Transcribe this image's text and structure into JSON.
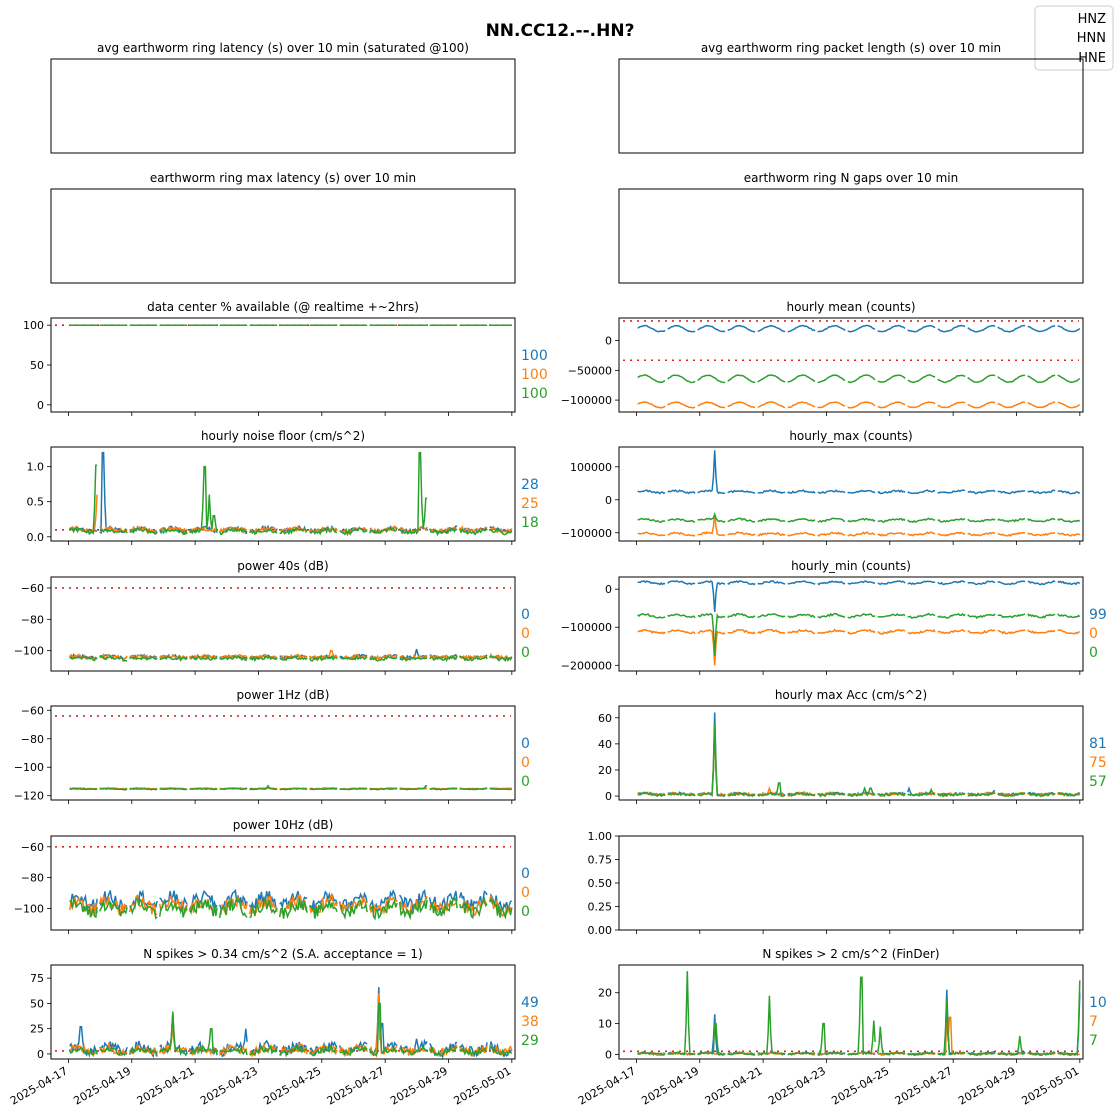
{
  "figure": {
    "title": "NN.CC12.--.HN?",
    "legend": [
      "HNZ",
      "HNN",
      "HNE"
    ],
    "legend_position": "top-right",
    "date_ticks": [
      "2025-04-17",
      "2025-04-19",
      "2025-04-21",
      "2025-04-23",
      "2025-04-25",
      "2025-04-27",
      "2025-04-29",
      "2025-05-01"
    ],
    "colors": {
      "HNZ": "#1f77b4",
      "HNN": "#ff7f0e",
      "HNE": "#2ca02c",
      "threshold": "#d62728"
    }
  },
  "chart_data": [
    {
      "id": "p0",
      "type": "line",
      "title": "avg earthworm ring latency (s)   over 10 min (saturated @100)",
      "empty": true,
      "yticks": [],
      "ylim": null,
      "threshold": [],
      "right_labels": []
    },
    {
      "id": "p1",
      "type": "line",
      "title": "avg earthworm ring packet length (s)   over 10 min",
      "empty": true,
      "yticks": [],
      "ylim": null,
      "threshold": [],
      "right_labels": []
    },
    {
      "id": "p2",
      "type": "line",
      "title": "earthworm ring max latency (s)   over 10 min",
      "empty": true,
      "yticks": [],
      "ylim": null,
      "threshold": [],
      "right_labels": []
    },
    {
      "id": "p3",
      "type": "line",
      "title": "earthworm ring N gaps   over 10 min",
      "empty": true,
      "yticks": [],
      "ylim": null,
      "threshold": [],
      "right_labels": []
    },
    {
      "id": "p4",
      "type": "line",
      "title": "data center % available (@ realtime +~2hrs)",
      "ylim": [
        -9,
        109
      ],
      "yticks": [
        {
          "v": 100,
          "t": "100"
        },
        {
          "v": 50,
          "t": "50"
        },
        {
          "v": 0,
          "t": "0"
        }
      ],
      "threshold": [
        100
      ],
      "right_labels": [
        "100",
        "100",
        "100"
      ],
      "series": [
        {
          "name": "HNZ",
          "base": 100,
          "amp": 0,
          "noise": 0,
          "spikes": []
        },
        {
          "name": "HNN",
          "base": 100,
          "amp": 0,
          "noise": 0,
          "spikes": []
        },
        {
          "name": "HNE",
          "base": 100,
          "amp": 0,
          "noise": 0,
          "spikes": []
        }
      ]
    },
    {
      "id": "p5",
      "type": "line",
      "title": "hourly mean (counts)",
      "ylim": [
        -120000,
        38000
      ],
      "yticks": [
        {
          "v": 0,
          "t": "0"
        },
        {
          "v": -50000,
          "t": "−50000"
        },
        {
          "v": -100000,
          "t": "−100000"
        }
      ],
      "threshold": [
        33000,
        -33000
      ],
      "right_labels": [],
      "series": [
        {
          "name": "HNZ",
          "base": 20000,
          "amp": 5000,
          "noise": 600,
          "spikes": []
        },
        {
          "name": "HNN",
          "base": -108000,
          "amp": 4500,
          "noise": 600,
          "spikes": []
        },
        {
          "name": "HNE",
          "base": -64000,
          "amp": 6000,
          "noise": 600,
          "spikes": []
        }
      ]
    },
    {
      "id": "p6",
      "type": "line",
      "title": "hourly noise floor (cm/s^2)",
      "ylim": [
        -0.06,
        1.28
      ],
      "yticks": [
        {
          "v": 1.0,
          "t": "1.0"
        },
        {
          "v": 0.5,
          "t": "0.5"
        },
        {
          "v": 0.0,
          "t": "0.0"
        }
      ],
      "threshold": [
        0.1
      ],
      "right_labels": [
        "28",
        "25",
        "18"
      ],
      "series": [
        {
          "name": "HNZ",
          "base": 0.1,
          "amp": 0.02,
          "noise": 0.03,
          "spikes": [
            [
              1.1,
              1.2
            ]
          ]
        },
        {
          "name": "HNN",
          "base": 0.1,
          "amp": 0.02,
          "noise": 0.03,
          "spikes": [
            [
              0.95,
              0.22
            ],
            [
              0.9,
              0.6
            ]
          ]
        },
        {
          "name": "HNE",
          "base": 0.08,
          "amp": 0.02,
          "noise": 0.03,
          "spikes": [
            [
              0.88,
              1.02
            ],
            [
              4.3,
              1.0
            ],
            [
              4.45,
              0.6
            ],
            [
              4.6,
              0.3
            ],
            [
              11.3,
              0.55
            ],
            [
              11.1,
              1.2
            ]
          ]
        }
      ]
    },
    {
      "id": "p7",
      "type": "line",
      "title": "hourly_max (counts)",
      "ylim": [
        -125000,
        160000
      ],
      "yticks": [
        {
          "v": 100000,
          "t": "100000"
        },
        {
          "v": 0,
          "t": "0"
        },
        {
          "v": -100000,
          "t": "−100000"
        }
      ],
      "threshold": [],
      "right_labels": [],
      "series": [
        {
          "name": "HNZ",
          "base": 24000,
          "amp": 3000,
          "noise": 2500,
          "spikes": [
            [
              2.48,
              150000
            ]
          ]
        },
        {
          "name": "HNN",
          "base": -104000,
          "amp": 3500,
          "noise": 2500,
          "spikes": [
            [
              2.48,
              -42000
            ]
          ]
        },
        {
          "name": "HNE",
          "base": -62000,
          "amp": 3500,
          "noise": 2500,
          "spikes": [
            [
              2.48,
              -44000
            ]
          ]
        }
      ]
    },
    {
      "id": "p8",
      "type": "line",
      "title": "power 40s (dB)",
      "ylim": [
        -113,
        -53
      ],
      "yticks": [
        {
          "v": -60,
          "t": "−60"
        },
        {
          "v": -80,
          "t": "−80"
        },
        {
          "v": -100,
          "t": "−100"
        }
      ],
      "threshold": [
        -60
      ],
      "right_labels": [
        "0",
        "0",
        "0"
      ],
      "series": [
        {
          "name": "HNZ",
          "base": -104,
          "amp": 0.5,
          "noise": 1.0,
          "spikes": [
            [
              11.0,
              -99
            ]
          ]
        },
        {
          "name": "HNN",
          "base": -104,
          "amp": 0.5,
          "noise": 1.1,
          "spikes": [
            [
              8.3,
              -100
            ]
          ]
        },
        {
          "name": "HNE",
          "base": -105,
          "amp": 0.5,
          "noise": 1.1,
          "spikes": []
        }
      ]
    },
    {
      "id": "p9",
      "type": "line",
      "title": "hourly_min (counts)",
      "ylim": [
        -215000,
        32000
      ],
      "yticks": [
        {
          "v": 0,
          "t": "0"
        },
        {
          "v": -100000,
          "t": "−100000"
        },
        {
          "v": -200000,
          "t": "−200000"
        }
      ],
      "threshold": [],
      "right_labels": [
        "99",
        "0",
        "0"
      ],
      "series": [
        {
          "name": "HNZ",
          "base": 17000,
          "amp": 3000,
          "noise": 2000,
          "spikes": [
            [
              2.48,
              -60000
            ]
          ]
        },
        {
          "name": "HNN",
          "base": -112000,
          "amp": 3500,
          "noise": 2500,
          "spikes": [
            [
              2.48,
              -200000
            ]
          ]
        },
        {
          "name": "HNE",
          "base": -70000,
          "amp": 3500,
          "noise": 2500,
          "spikes": [
            [
              2.48,
              -175000
            ]
          ]
        }
      ]
    },
    {
      "id": "p10",
      "type": "line",
      "title": "power 1Hz (dB)",
      "ylim": [
        -123,
        -57
      ],
      "yticks": [
        {
          "v": -60,
          "t": "−60"
        },
        {
          "v": -80,
          "t": "−80"
        },
        {
          "v": -100,
          "t": "−100"
        },
        {
          "v": -120,
          "t": "−120"
        }
      ],
      "threshold": [
        -64
      ],
      "right_labels": [
        "0",
        "0",
        "0"
      ],
      "series": [
        {
          "name": "HNZ",
          "base": -115,
          "amp": 0.2,
          "noise": 0.3,
          "spikes": []
        },
        {
          "name": "HNN",
          "base": -115,
          "amp": 0.2,
          "noise": 0.3,
          "spikes": []
        },
        {
          "name": "HNE",
          "base": -115.3,
          "amp": 0.2,
          "noise": 0.3,
          "spikes": [
            [
              6.3,
              -113
            ],
            [
              11.3,
              -113
            ]
          ]
        }
      ]
    },
    {
      "id": "p11",
      "type": "line",
      "title": "hourly max Acc (cm/s^2)",
      "ylim": [
        -3,
        69
      ],
      "yticks": [
        {
          "v": 60,
          "t": "60"
        },
        {
          "v": 40,
          "t": "40"
        },
        {
          "v": 20,
          "t": "20"
        },
        {
          "v": 0,
          "t": "0"
        }
      ],
      "threshold": [],
      "right_labels": [
        "81",
        "75",
        "57"
      ],
      "series": [
        {
          "name": "HNZ",
          "base": 1.5,
          "amp": 0.5,
          "noise": 1.0,
          "spikes": [
            [
              2.48,
              64
            ],
            [
              8.6,
              6
            ],
            [
              11.3,
              4
            ]
          ]
        },
        {
          "name": "HNN",
          "base": 1.5,
          "amp": 0.5,
          "noise": 1.0,
          "spikes": [
            [
              2.48,
              50
            ],
            [
              4.2,
              6
            ]
          ]
        },
        {
          "name": "HNE",
          "base": 1.2,
          "amp": 0.5,
          "noise": 1.0,
          "spikes": [
            [
              2.48,
              56
            ],
            [
              4.5,
              10
            ],
            [
              7.2,
              6
            ],
            [
              7.4,
              6
            ],
            [
              9.3,
              5
            ]
          ]
        }
      ]
    },
    {
      "id": "p12",
      "type": "line",
      "title": "power 10Hz (dB)",
      "ylim": [
        -114,
        -53
      ],
      "yticks": [
        {
          "v": -60,
          "t": "−60"
        },
        {
          "v": -80,
          "t": "−80"
        },
        {
          "v": -100,
          "t": "−100"
        }
      ],
      "threshold": [
        -60
      ],
      "right_labels": [
        "0",
        "0",
        "0"
      ],
      "series": [
        {
          "name": "HNZ",
          "base": -95,
          "amp": 3,
          "noise": 4,
          "spikes": []
        },
        {
          "name": "HNN",
          "base": -98,
          "amp": 3,
          "noise": 4,
          "spikes": []
        },
        {
          "name": "HNE",
          "base": -100,
          "amp": 3,
          "noise": 4,
          "spikes": []
        }
      ]
    },
    {
      "id": "p13",
      "type": "line",
      "title": "",
      "ylim": [
        0,
        1
      ],
      "yticks": [
        {
          "v": 1.0,
          "t": "1.00"
        },
        {
          "v": 0.75,
          "t": "0.75"
        },
        {
          "v": 0.5,
          "t": "0.50"
        },
        {
          "v": 0.25,
          "t": "0.25"
        },
        {
          "v": 0.0,
          "t": "0.00"
        }
      ],
      "threshold": [],
      "right_labels": [],
      "series": []
    },
    {
      "id": "p14",
      "type": "line",
      "title": "N spikes > 0.34 cm/s^2 (S.A. acceptance = 1)",
      "ylim": [
        -5,
        88
      ],
      "yticks": [
        {
          "v": 75,
          "t": "75"
        },
        {
          "v": 50,
          "t": "50"
        },
        {
          "v": 25,
          "t": "25"
        },
        {
          "v": 0,
          "t": "0"
        }
      ],
      "threshold": [
        3
      ],
      "right_labels": [
        "49",
        "38",
        "29"
      ],
      "series": [
        {
          "name": "HNZ",
          "base": 5,
          "amp": 3,
          "noise": 5,
          "spikes": [
            [
              0.4,
              27
            ],
            [
              3.3,
              40
            ],
            [
              5.6,
              25
            ],
            [
              9.8,
              66
            ],
            [
              9.9,
              30
            ],
            [
              11.0,
              15
            ]
          ]
        },
        {
          "name": "HNN",
          "base": 4,
          "amp": 2,
          "noise": 4,
          "spikes": [
            [
              3.3,
              28
            ],
            [
              9.8,
              60
            ]
          ]
        },
        {
          "name": "HNE",
          "base": 3,
          "amp": 2,
          "noise": 3,
          "spikes": [
            [
              3.3,
              42
            ],
            [
              4.5,
              25
            ],
            [
              9.82,
              50
            ]
          ]
        }
      ]
    },
    {
      "id": "p15",
      "type": "line",
      "title": "N spikes > 2 cm/s^2 (FinDer)",
      "ylim": [
        -1.5,
        29
      ],
      "yticks": [
        {
          "v": 20,
          "t": "20"
        },
        {
          "v": 10,
          "t": "10"
        },
        {
          "v": 0,
          "t": "0"
        }
      ],
      "threshold": [
        1
      ],
      "right_labels": [
        "10",
        "7",
        "7"
      ],
      "series": [
        {
          "name": "HNZ",
          "base": 0.3,
          "amp": 0.2,
          "noise": 0.3,
          "spikes": [
            [
              2.48,
              13
            ],
            [
              9.8,
              21
            ],
            [
              14.0,
              20
            ]
          ]
        },
        {
          "name": "HNN",
          "base": 0.2,
          "amp": 0.2,
          "noise": 0.3,
          "spikes": [
            [
              9.82,
              14
            ],
            [
              9.9,
              12
            ]
          ]
        },
        {
          "name": "HNE",
          "base": 0.2,
          "amp": 0.2,
          "noise": 0.3,
          "spikes": [
            [
              1.6,
              27
            ],
            [
              2.5,
              10
            ],
            [
              4.2,
              19
            ],
            [
              5.9,
              10
            ],
            [
              7.1,
              25
            ],
            [
              7.5,
              11
            ],
            [
              7.7,
              9
            ],
            [
              9.8,
              18
            ],
            [
              12.1,
              6
            ],
            [
              14.0,
              24
            ]
          ]
        }
      ]
    }
  ]
}
